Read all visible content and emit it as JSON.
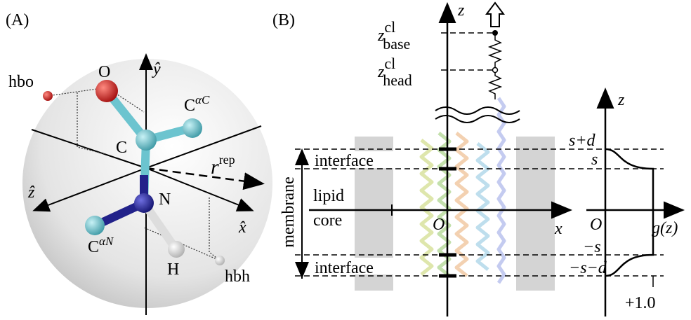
{
  "panel_a": {
    "label": "(A)",
    "hbo": "hbo",
    "hbh": "hbh",
    "oxygen": "O",
    "carbon": "C",
    "nitrogen": "N",
    "hydrogen": "H",
    "y_axis": "ŷ",
    "z_axis": "ẑ",
    "x_axis": "x̂",
    "calpha_c": {
      "base": "C",
      "sup": "αC"
    },
    "calpha_n": {
      "base": "C",
      "sup": "αN"
    },
    "r_rep": {
      "base": "r",
      "sup": "rep"
    }
  },
  "panel_b": {
    "label": "(B)",
    "z_axis": "z",
    "x_axis": "x",
    "origin": "O",
    "z_base": {
      "base": "z",
      "sup": "cl",
      "sub": "base"
    },
    "z_head": {
      "base": "z",
      "sup": "cl",
      "sub": "head"
    },
    "interface_top": "interface",
    "interface_bottom": "interface",
    "lipid": "lipid",
    "core": "core",
    "membrane": "membrane",
    "g_plot": {
      "z_axis": "z",
      "origin": "O",
      "g_label": "g(z)",
      "s_plus_d": "s+d",
      "s": "s",
      "minus_s": "−s",
      "minus_s_minus_d": "−s−d",
      "one": "+1.0"
    }
  }
}
